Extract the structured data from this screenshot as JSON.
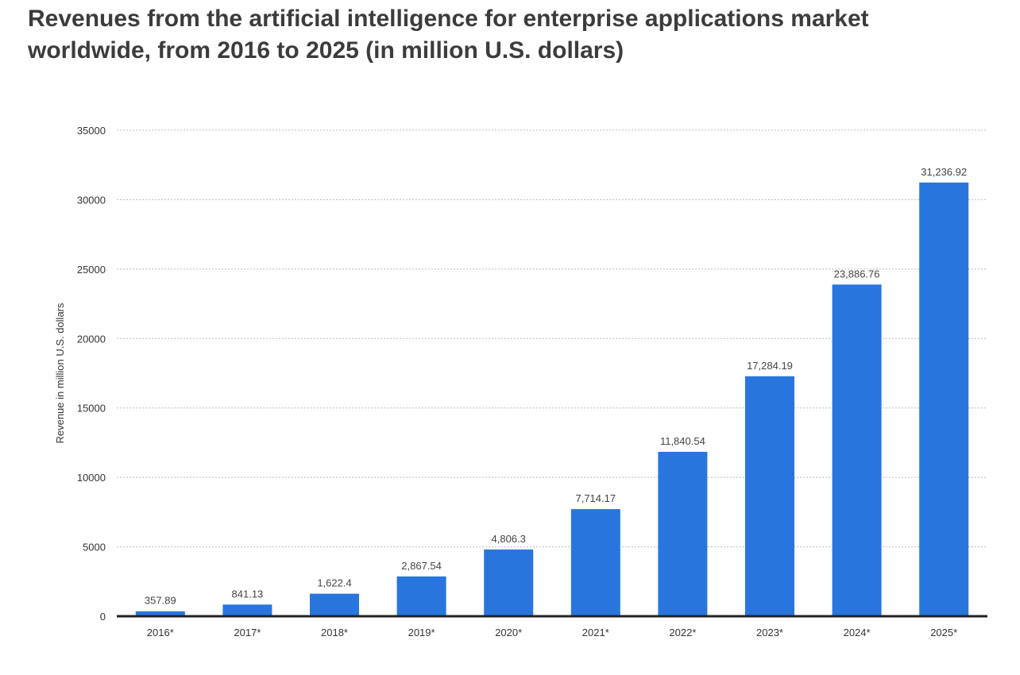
{
  "chart_data": {
    "type": "bar",
    "title": "Revenues from the artificial intelligence for enterprise applications market worldwide, from 2016 to 2025 (in million U.S. dollars)",
    "xlabel": "",
    "ylabel": "Revenue in million U.S. dollars",
    "categories": [
      "2016*",
      "2017*",
      "2018*",
      "2019*",
      "2020*",
      "2021*",
      "2022*",
      "2023*",
      "2024*",
      "2025*"
    ],
    "values": [
      357.89,
      841.13,
      1622.4,
      2867.54,
      4806.3,
      7714.17,
      11840.54,
      17284.19,
      23886.76,
      31236.92
    ],
    "value_labels": [
      "357.89",
      "841.13",
      "1,622.4",
      "2,867.54",
      "4,806.3",
      "7,714.17",
      "11,840.54",
      "17,284.19",
      "23,886.76",
      "31,236.92"
    ],
    "yticks": [
      "0",
      "5000",
      "10000",
      "15000",
      "20000",
      "25000",
      "30000",
      "35000"
    ],
    "ylim": [
      0,
      35000
    ],
    "grid": true,
    "bar_color": "#2876dd"
  }
}
